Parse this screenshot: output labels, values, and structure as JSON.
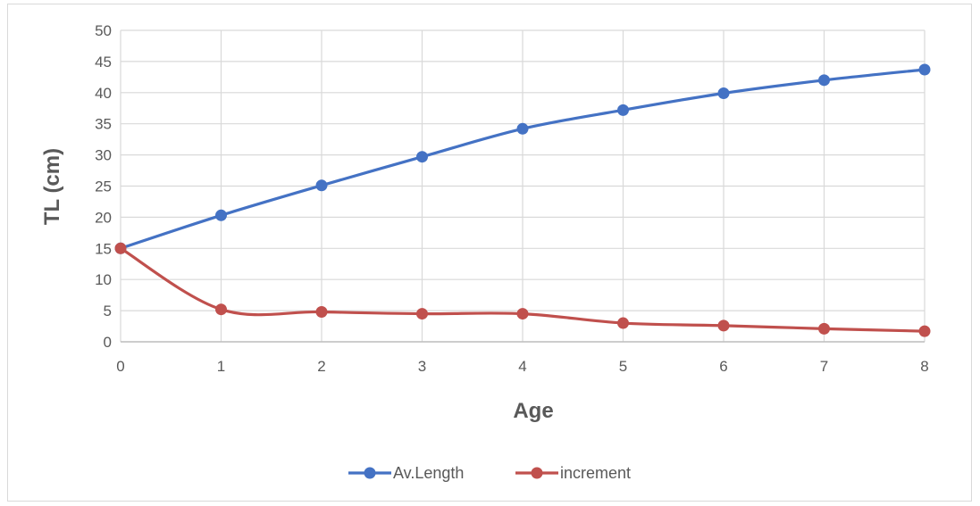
{
  "chart_data": {
    "type": "line",
    "title": "",
    "xlabel": "Age",
    "ylabel": "TL (cm)",
    "x": [
      0,
      1,
      2,
      3,
      4,
      5,
      6,
      7,
      8
    ],
    "xlim": [
      0,
      8
    ],
    "ylim": [
      0,
      50
    ],
    "yticks": [
      0,
      5,
      10,
      15,
      20,
      25,
      30,
      35,
      40,
      45,
      50
    ],
    "grid": true,
    "legend_position": "bottom",
    "series": [
      {
        "name": "Av.Length",
        "color": "#4472c4",
        "values": [
          15.0,
          20.3,
          25.1,
          29.7,
          34.2,
          37.2,
          39.9,
          42.0,
          43.7
        ]
      },
      {
        "name": "increment",
        "color": "#c0504d",
        "values": [
          15.0,
          5.2,
          4.8,
          4.5,
          4.5,
          3.0,
          2.6,
          2.1,
          1.7
        ]
      }
    ]
  }
}
